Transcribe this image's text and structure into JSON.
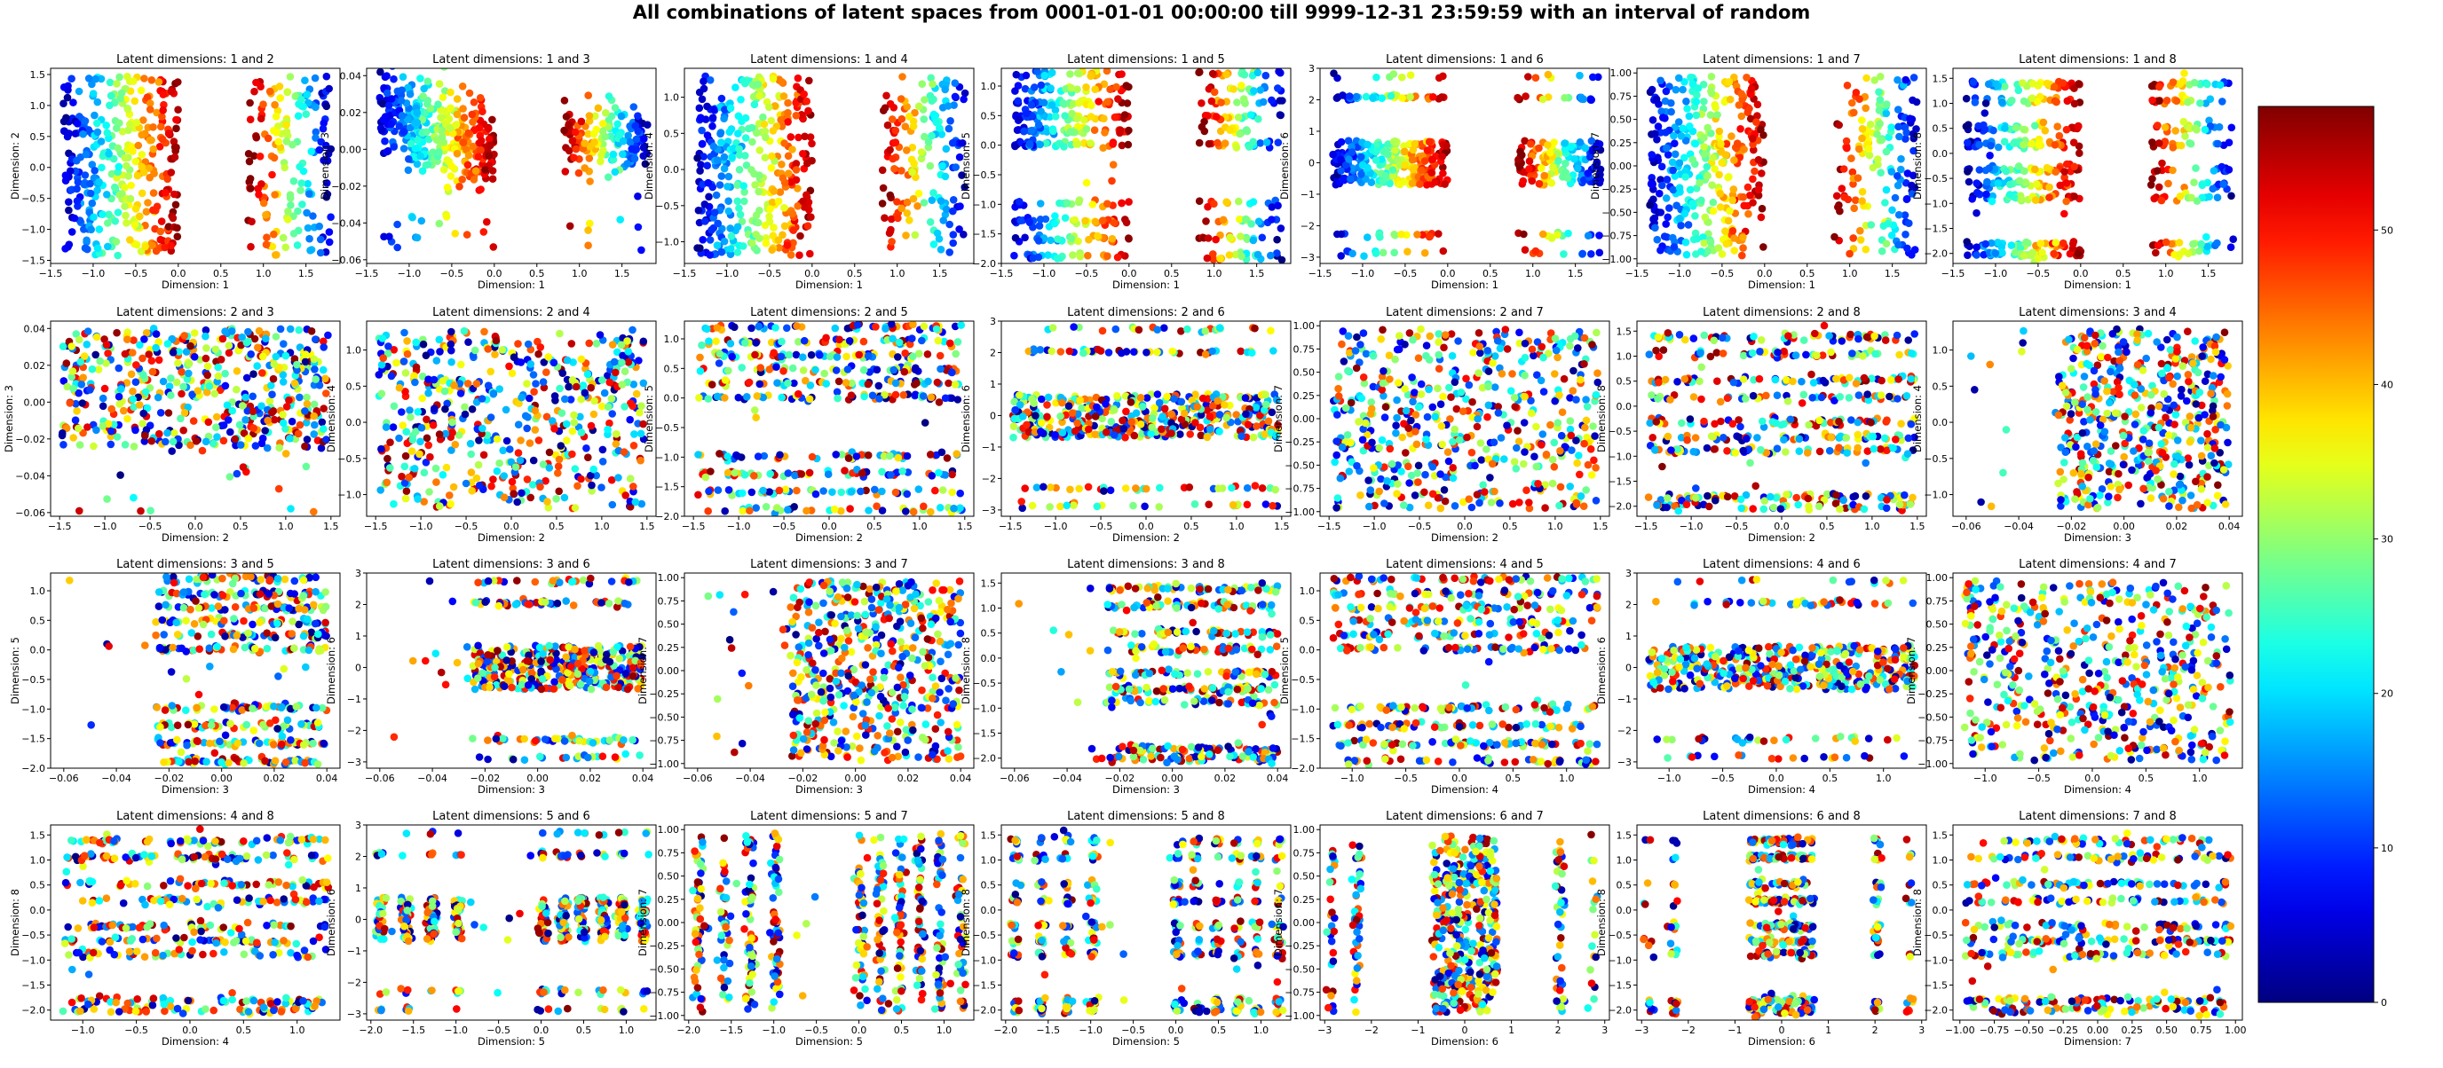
{
  "title": "All combinations of latent spaces from 0001-01-01 00:00:00 till 9999-12-31 23:59:59 with an interval of  random",
  "chart_data": {
    "type": "scatter",
    "colormap": "jet",
    "colorbar": {
      "range": [
        0,
        58
      ],
      "ticks": [
        0,
        10,
        20,
        30,
        40,
        50
      ]
    },
    "panels": [
      {
        "title": "Latent dimensions: 1 and 2",
        "xlabel": "Dimension: 1",
        "ylabel": "Dimension: 2",
        "xlim": [
          -1.5,
          1.9
        ],
        "ylim": [
          -1.55,
          1.6
        ],
        "xticks": [
          -1.5,
          -1.0,
          -0.5,
          0.0,
          0.5,
          1.0,
          1.5
        ],
        "yticks": [
          -1.5,
          -1.0,
          -0.5,
          0.0,
          0.5,
          1.0,
          1.5
        ],
        "pattern": {
          "dx": "split",
          "dy": "uniform",
          "color": "dx"
        }
      },
      {
        "title": "Latent dimensions: 1 and 3",
        "xlabel": "Dimension: 1",
        "ylabel": "Dimension: 3",
        "xlim": [
          -1.5,
          1.9
        ],
        "ylim": [
          -0.062,
          0.044
        ],
        "xticks": [
          -1.5,
          -1.0,
          -0.5,
          0.0,
          0.5,
          1.0,
          1.5
        ],
        "yticks": [
          -0.06,
          -0.04,
          -0.02,
          0.0,
          0.02,
          0.04
        ],
        "pattern": {
          "dx": "split",
          "dy": "slope",
          "color": "dx"
        }
      },
      {
        "title": "Latent dimensions: 1 and 4",
        "xlabel": "Dimension: 1",
        "ylabel": "Dimension: 4",
        "xlim": [
          -1.5,
          1.9
        ],
        "ylim": [
          -1.3,
          1.4
        ],
        "xticks": [
          -1.5,
          -1.0,
          -0.5,
          0.0,
          0.5,
          1.0,
          1.5
        ],
        "yticks": [
          -1.0,
          -0.5,
          0.0,
          0.5,
          1.0
        ],
        "pattern": {
          "dx": "split",
          "dy": "uniform",
          "color": "dx"
        }
      },
      {
        "title": "Latent dimensions: 1 and 5",
        "xlabel": "Dimension: 1",
        "ylabel": "Dimension: 5",
        "xlim": [
          -1.5,
          1.9
        ],
        "ylim": [
          -2.0,
          1.3
        ],
        "xticks": [
          -1.5,
          -1.0,
          -0.5,
          0.0,
          0.5,
          1.0,
          1.5
        ],
        "yticks": [
          -2.0,
          -1.5,
          -1.0,
          -0.5,
          0.0,
          0.5,
          1.0
        ],
        "pattern": {
          "dx": "split",
          "dy": "rows5",
          "color": "dx"
        }
      },
      {
        "title": "Latent dimensions: 1 and 6",
        "xlabel": "Dimension: 1",
        "ylabel": "Dimension: 6",
        "xlim": [
          -1.5,
          1.9
        ],
        "ylim": [
          -3.2,
          3.0
        ],
        "xticks": [
          -1.5,
          -1.0,
          -0.5,
          0.0,
          0.5,
          1.0,
          1.5
        ],
        "yticks": [
          -3,
          -2,
          -1,
          0,
          1,
          2,
          3
        ],
        "pattern": {
          "dx": "split",
          "dy": "rows6",
          "color": "dx"
        }
      },
      {
        "title": "Latent dimensions: 1 and 7",
        "xlabel": "Dimension: 1",
        "ylabel": "Dimension: 7",
        "xlim": [
          -1.5,
          1.9
        ],
        "ylim": [
          -1.05,
          1.05
        ],
        "xticks": [
          -1.5,
          -1.0,
          -0.5,
          0.0,
          0.5,
          1.0,
          1.5
        ],
        "yticks": [
          -1.0,
          -0.75,
          -0.5,
          -0.25,
          0.0,
          0.25,
          0.5,
          0.75,
          1.0
        ],
        "pattern": {
          "dx": "split",
          "dy": "uniform",
          "color": "dx"
        }
      },
      {
        "title": "Latent dimensions: 1 and 8",
        "xlabel": "Dimension: 1",
        "ylabel": "Dimension: 8",
        "xlim": [
          -1.5,
          1.9
        ],
        "ylim": [
          -2.2,
          1.7
        ],
        "xticks": [
          -1.5,
          -1.0,
          -0.5,
          0.0,
          0.5,
          1.0,
          1.5
        ],
        "yticks": [
          -2.0,
          -1.5,
          -1.0,
          -0.5,
          0.0,
          0.5,
          1.0,
          1.5
        ],
        "pattern": {
          "dx": "split",
          "dy": "rows8",
          "color": "dx"
        }
      },
      {
        "title": "Latent dimensions: 2 and 3",
        "xlabel": "Dimension: 2",
        "ylabel": "Dimension: 3",
        "xlim": [
          -1.6,
          1.6
        ],
        "ylim": [
          -0.062,
          0.044
        ],
        "xticks": [
          -1.5,
          -1.0,
          -0.5,
          0.0,
          0.5,
          1.0,
          1.5
        ],
        "yticks": [
          -0.06,
          -0.04,
          -0.02,
          0.0,
          0.02,
          0.04
        ],
        "pattern": {
          "dx": "uniform",
          "dy": "center",
          "color": "random"
        }
      },
      {
        "title": "Latent dimensions: 2 and 4",
        "xlabel": "Dimension: 2",
        "ylabel": "Dimension: 4",
        "xlim": [
          -1.6,
          1.6
        ],
        "ylim": [
          -1.3,
          1.4
        ],
        "xticks": [
          -1.5,
          -1.0,
          -0.5,
          0.0,
          0.5,
          1.0,
          1.5
        ],
        "yticks": [
          -1.0,
          -0.5,
          0.0,
          0.5,
          1.0
        ],
        "pattern": {
          "dx": "uniform",
          "dy": "uniform",
          "color": "random"
        }
      },
      {
        "title": "Latent dimensions: 2 and 5",
        "xlabel": "Dimension: 2",
        "ylabel": "Dimension: 5",
        "xlim": [
          -1.6,
          1.6
        ],
        "ylim": [
          -2.0,
          1.3
        ],
        "xticks": [
          -1.5,
          -1.0,
          -0.5,
          0.0,
          0.5,
          1.0,
          1.5
        ],
        "yticks": [
          -2.0,
          -1.5,
          -1.0,
          -0.5,
          0.0,
          0.5,
          1.0
        ],
        "pattern": {
          "dx": "uniform",
          "dy": "rows5",
          "color": "random"
        }
      },
      {
        "title": "Latent dimensions: 2 and 6",
        "xlabel": "Dimension: 2",
        "ylabel": "Dimension: 6",
        "xlim": [
          -1.6,
          1.6
        ],
        "ylim": [
          -3.2,
          3.0
        ],
        "xticks": [
          -1.5,
          -1.0,
          -0.5,
          0.0,
          0.5,
          1.0,
          1.5
        ],
        "yticks": [
          -3,
          -2,
          -1,
          0,
          1,
          2,
          3
        ],
        "pattern": {
          "dx": "uniform",
          "dy": "rows6",
          "color": "random"
        }
      },
      {
        "title": "Latent dimensions: 2 and 7",
        "xlabel": "Dimension: 2",
        "ylabel": "Dimension: 7",
        "xlim": [
          -1.6,
          1.6
        ],
        "ylim": [
          -1.05,
          1.05
        ],
        "xticks": [
          -1.5,
          -1.0,
          -0.5,
          0.0,
          0.5,
          1.0,
          1.5
        ],
        "yticks": [
          -1.0,
          -0.75,
          -0.5,
          -0.25,
          0.0,
          0.25,
          0.5,
          0.75,
          1.0
        ],
        "pattern": {
          "dx": "uniform",
          "dy": "uniform",
          "color": "random"
        }
      },
      {
        "title": "Latent dimensions: 2 and 8",
        "xlabel": "Dimension: 2",
        "ylabel": "Dimension: 8",
        "xlim": [
          -1.6,
          1.6
        ],
        "ylim": [
          -2.2,
          1.7
        ],
        "xticks": [
          -1.5,
          -1.0,
          -0.5,
          0.0,
          0.5,
          1.0,
          1.5
        ],
        "yticks": [
          -2.0,
          -1.5,
          -1.0,
          -0.5,
          0.0,
          0.5,
          1.0,
          1.5
        ],
        "pattern": {
          "dx": "uniform",
          "dy": "rows8",
          "color": "random"
        }
      },
      {
        "title": "Latent dimensions: 3 and 4",
        "xlabel": "Dimension: 3",
        "ylabel": "Dimension: 4",
        "xlim": [
          -0.065,
          0.045
        ],
        "ylim": [
          -1.3,
          1.4
        ],
        "xticks": [
          -0.06,
          -0.04,
          -0.02,
          0.0,
          0.02,
          0.04
        ],
        "yticks": [
          -1.0,
          -0.5,
          0.0,
          0.5,
          1.0
        ],
        "pattern": {
          "dx": "center",
          "dy": "uniform",
          "color": "random"
        }
      },
      {
        "title": "Latent dimensions: 3 and 5",
        "xlabel": "Dimension: 3",
        "ylabel": "Dimension: 5",
        "xlim": [
          -0.065,
          0.045
        ],
        "ylim": [
          -2.0,
          1.3
        ],
        "xticks": [
          -0.06,
          -0.04,
          -0.02,
          0.0,
          0.02,
          0.04
        ],
        "yticks": [
          -2.0,
          -1.5,
          -1.0,
          -0.5,
          0.0,
          0.5,
          1.0
        ],
        "pattern": {
          "dx": "center",
          "dy": "rows5",
          "color": "random"
        }
      },
      {
        "title": "Latent dimensions: 3 and 6",
        "xlabel": "Dimension: 3",
        "ylabel": "Dimension: 6",
        "xlim": [
          -0.065,
          0.045
        ],
        "ylim": [
          -3.2,
          3.0
        ],
        "xticks": [
          -0.06,
          -0.04,
          -0.02,
          0.0,
          0.02,
          0.04
        ],
        "yticks": [
          -3,
          -2,
          -1,
          0,
          1,
          2,
          3
        ],
        "pattern": {
          "dx": "center",
          "dy": "rows6",
          "color": "random"
        }
      },
      {
        "title": "Latent dimensions: 3 and 7",
        "xlabel": "Dimension: 3",
        "ylabel": "Dimension: 7",
        "xlim": [
          -0.065,
          0.045
        ],
        "ylim": [
          -1.05,
          1.05
        ],
        "xticks": [
          -0.06,
          -0.04,
          -0.02,
          0.0,
          0.02,
          0.04
        ],
        "yticks": [
          -1.0,
          -0.75,
          -0.5,
          -0.25,
          0.0,
          0.25,
          0.5,
          0.75,
          1.0
        ],
        "pattern": {
          "dx": "center",
          "dy": "uniform",
          "color": "random"
        }
      },
      {
        "title": "Latent dimensions: 3 and 8",
        "xlabel": "Dimension: 3",
        "ylabel": "Dimension: 8",
        "xlim": [
          -0.065,
          0.045
        ],
        "ylim": [
          -2.2,
          1.7
        ],
        "xticks": [
          -0.06,
          -0.04,
          -0.02,
          0.0,
          0.02,
          0.04
        ],
        "yticks": [
          -2.0,
          -1.5,
          -1.0,
          -0.5,
          0.0,
          0.5,
          1.0,
          1.5
        ],
        "pattern": {
          "dx": "center",
          "dy": "rows8",
          "color": "random"
        }
      },
      {
        "title": "Latent dimensions: 4 and 5",
        "xlabel": "Dimension: 4",
        "ylabel": "Dimension: 5",
        "xlim": [
          -1.3,
          1.4
        ],
        "ylim": [
          -2.0,
          1.3
        ],
        "xticks": [
          -1.0,
          -0.5,
          0.0,
          0.5,
          1.0
        ],
        "yticks": [
          -2.0,
          -1.5,
          -1.0,
          -0.5,
          0.0,
          0.5,
          1.0
        ],
        "pattern": {
          "dx": "uniform",
          "dy": "rows5",
          "color": "random"
        }
      },
      {
        "title": "Latent dimensions: 4 and 6",
        "xlabel": "Dimension: 4",
        "ylabel": "Dimension: 6",
        "xlim": [
          -1.3,
          1.4
        ],
        "ylim": [
          -3.2,
          3.0
        ],
        "xticks": [
          -1.0,
          -0.5,
          0.0,
          0.5,
          1.0
        ],
        "yticks": [
          -3,
          -2,
          -1,
          0,
          1,
          2,
          3
        ],
        "pattern": {
          "dx": "uniform",
          "dy": "rows6",
          "color": "random"
        }
      },
      {
        "title": "Latent dimensions: 4 and 7",
        "xlabel": "Dimension: 4",
        "ylabel": "Dimension: 7",
        "xlim": [
          -1.3,
          1.4
        ],
        "ylim": [
          -1.05,
          1.05
        ],
        "xticks": [
          -1.0,
          -0.5,
          0.0,
          0.5,
          1.0
        ],
        "yticks": [
          -1.0,
          -0.75,
          -0.5,
          -0.25,
          0.0,
          0.25,
          0.5,
          0.75,
          1.0
        ],
        "pattern": {
          "dx": "uniform",
          "dy": "uniform",
          "color": "random"
        }
      },
      {
        "title": "Latent dimensions: 4 and 8",
        "xlabel": "Dimension: 4",
        "ylabel": "Dimension: 8",
        "xlim": [
          -1.3,
          1.4
        ],
        "ylim": [
          -2.2,
          1.7
        ],
        "xticks": [
          -1.0,
          -0.5,
          0.0,
          0.5,
          1.0
        ],
        "yticks": [
          -2.0,
          -1.5,
          -1.0,
          -0.5,
          0.0,
          0.5,
          1.0,
          1.5
        ],
        "pattern": {
          "dx": "uniform",
          "dy": "rows8",
          "color": "random"
        }
      },
      {
        "title": "Latent dimensions: 5 and 6",
        "xlabel": "Dimension: 5",
        "ylabel": "Dimension: 6",
        "xlim": [
          -2.05,
          1.35
        ],
        "ylim": [
          -3.2,
          3.0
        ],
        "xticks": [
          -2.0,
          -1.5,
          -1.0,
          -0.5,
          0.0,
          0.5,
          1.0
        ],
        "yticks": [
          -3,
          -2,
          -1,
          0,
          1,
          2,
          3
        ],
        "pattern": {
          "dx": "rows5",
          "dy": "rows6",
          "color": "random"
        }
      },
      {
        "title": "Latent dimensions: 5 and 7",
        "xlabel": "Dimension: 5",
        "ylabel": "Dimension: 7",
        "xlim": [
          -2.05,
          1.35
        ],
        "ylim": [
          -1.05,
          1.05
        ],
        "xticks": [
          -2.0,
          -1.5,
          -1.0,
          -0.5,
          0.0,
          0.5,
          1.0
        ],
        "yticks": [
          -1.0,
          -0.75,
          -0.5,
          -0.25,
          0.0,
          0.25,
          0.5,
          0.75,
          1.0
        ],
        "pattern": {
          "dx": "rows5",
          "dy": "uniform",
          "color": "random"
        }
      },
      {
        "title": "Latent dimensions: 5 and 8",
        "xlabel": "Dimension: 5",
        "ylabel": "Dimension: 8",
        "xlim": [
          -2.05,
          1.35
        ],
        "ylim": [
          -2.2,
          1.7
        ],
        "xticks": [
          -2.0,
          -1.5,
          -1.0,
          -0.5,
          0.0,
          0.5,
          1.0
        ],
        "yticks": [
          -2.0,
          -1.5,
          -1.0,
          -0.5,
          0.0,
          0.5,
          1.0,
          1.5
        ],
        "pattern": {
          "dx": "rows5",
          "dy": "rows8",
          "color": "random"
        }
      },
      {
        "title": "Latent dimensions: 6 and 7",
        "xlabel": "Dimension: 6",
        "ylabel": "Dimension: 7",
        "xlim": [
          -3.1,
          3.1
        ],
        "ylim": [
          -1.05,
          1.05
        ],
        "xticks": [
          -3,
          -2,
          -1,
          0,
          1,
          2,
          3
        ],
        "yticks": [
          -1.0,
          -0.75,
          -0.5,
          -0.25,
          0.0,
          0.25,
          0.5,
          0.75,
          1.0
        ],
        "pattern": {
          "dx": "rows6",
          "dy": "uniform",
          "color": "random"
        }
      },
      {
        "title": "Latent dimensions: 6 and 8",
        "xlabel": "Dimension: 6",
        "ylabel": "Dimension: 8",
        "xlim": [
          -3.1,
          3.1
        ],
        "ylim": [
          -2.2,
          1.7
        ],
        "xticks": [
          -3,
          -2,
          -1,
          0,
          1,
          2,
          3
        ],
        "yticks": [
          -2.0,
          -1.5,
          -1.0,
          -0.5,
          0.0,
          0.5,
          1.0,
          1.5
        ],
        "pattern": {
          "dx": "rows6",
          "dy": "rows8",
          "color": "random"
        }
      },
      {
        "title": "Latent dimensions: 7 and 8",
        "xlabel": "Dimension: 7",
        "ylabel": "Dimension: 8",
        "xlim": [
          -1.05,
          1.05
        ],
        "ylim": [
          -2.2,
          1.7
        ],
        "xticks": [
          -1.0,
          -0.75,
          -0.5,
          -0.25,
          0.0,
          0.25,
          0.5,
          0.75,
          1.0
        ],
        "yticks": [
          -2.0,
          -1.5,
          -1.0,
          -0.5,
          0.0,
          0.5,
          1.0,
          1.5
        ],
        "pattern": {
          "dx": "uniform",
          "dy": "rows8",
          "color": "random"
        }
      }
    ]
  }
}
